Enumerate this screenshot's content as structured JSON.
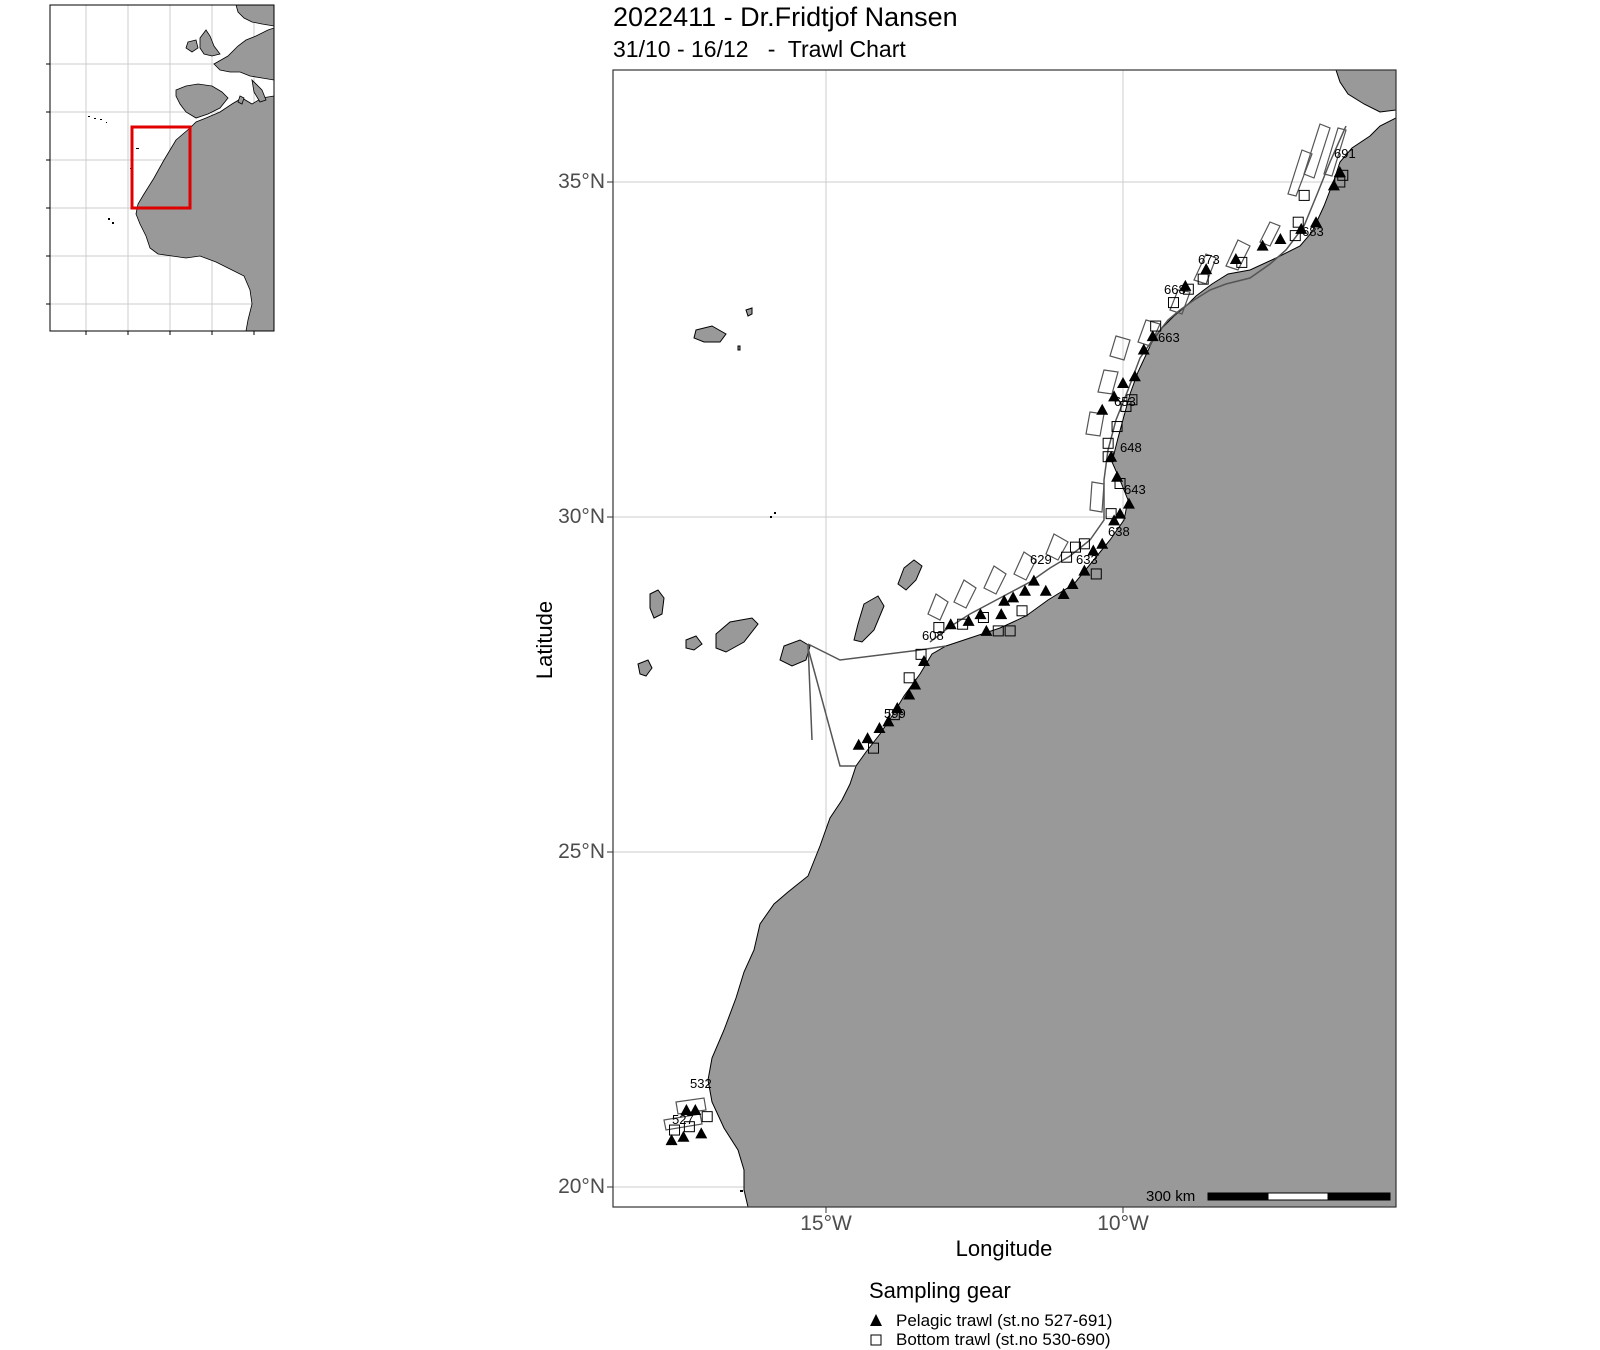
{
  "title": "2022411 - Dr.Fridtjof Nansen",
  "subtitle": "31/10 - 16/12   -  Trawl Chart",
  "axes": {
    "xlabel": "Longitude",
    "ylabel": "Latitude",
    "x_ticks": [
      "15°W",
      "10°W"
    ],
    "y_ticks": [
      "35°N",
      "30°N",
      "25°N",
      "20°N"
    ]
  },
  "scale_bar": {
    "label": "300 km"
  },
  "legend": {
    "title": "Sampling gear",
    "items": [
      {
        "label": "Pelagic trawl (st.no 527-691)",
        "symbol": "filled-triangle-icon"
      },
      {
        "label": "Bottom trawl (st.no 530-690)",
        "symbol": "open-square-icon"
      }
    ]
  },
  "colors": {
    "land": "#999999",
    "sea": "#ffffff",
    "grid": "#cccccc",
    "inset_box": "#e00000"
  },
  "station_labels": [
    "527",
    "532",
    "599",
    "608",
    "629",
    "633",
    "638",
    "643",
    "648",
    "653",
    "663",
    "668",
    "673",
    "683",
    "691"
  ],
  "chart_data": {
    "type": "map",
    "xlabel": "Longitude",
    "ylabel": "Latitude",
    "xlim": [
      -18.5,
      -5.0
    ],
    "ylim": [
      19.5,
      36.5
    ],
    "grid": true,
    "legend_position": "bottom",
    "series": [
      {
        "name": "Pelagic trawl (st.no 527-691)",
        "marker": "triangle",
        "points": [
          [
            -17.6,
            20.7
          ],
          [
            -17.4,
            20.75
          ],
          [
            -17.1,
            20.8
          ],
          [
            -17.35,
            21.15
          ],
          [
            -17.2,
            21.15
          ],
          [
            -14.45,
            26.6
          ],
          [
            -14.3,
            26.7
          ],
          [
            -14.1,
            26.85
          ],
          [
            -13.95,
            26.95
          ],
          [
            -13.8,
            27.15
          ],
          [
            -13.6,
            27.35
          ],
          [
            -13.5,
            27.5
          ],
          [
            -13.35,
            27.85
          ],
          [
            -12.9,
            28.4
          ],
          [
            -12.6,
            28.45
          ],
          [
            -12.4,
            28.55
          ],
          [
            -12.3,
            28.3
          ],
          [
            -12.05,
            28.55
          ],
          [
            -12.0,
            28.75
          ],
          [
            -11.85,
            28.8
          ],
          [
            -11.65,
            28.9
          ],
          [
            -11.5,
            29.05
          ],
          [
            -11.3,
            28.9
          ],
          [
            -11.0,
            28.85
          ],
          [
            -10.85,
            29.0
          ],
          [
            -10.65,
            29.2
          ],
          [
            -10.5,
            29.5
          ],
          [
            -10.35,
            29.6
          ],
          [
            -10.15,
            29.95
          ],
          [
            -10.05,
            30.05
          ],
          [
            -9.9,
            30.2
          ],
          [
            -10.1,
            30.6
          ],
          [
            -10.2,
            30.9
          ],
          [
            -10.35,
            31.6
          ],
          [
            -10.15,
            31.8
          ],
          [
            -10.0,
            32.0
          ],
          [
            -9.8,
            32.1
          ],
          [
            -9.65,
            32.5
          ],
          [
            -9.5,
            32.7
          ],
          [
            -8.95,
            33.45
          ],
          [
            -8.6,
            33.7
          ],
          [
            -8.1,
            33.85
          ],
          [
            -7.65,
            34.05
          ],
          [
            -7.35,
            34.15
          ],
          [
            -7.0,
            34.3
          ],
          [
            -6.75,
            34.4
          ],
          [
            -6.45,
            34.95
          ],
          [
            -6.35,
            35.15
          ]
        ]
      },
      {
        "name": "Bottom trawl (st.no 530-690)",
        "marker": "square",
        "points": [
          [
            -17.55,
            20.85
          ],
          [
            -17.3,
            20.9
          ],
          [
            -17.0,
            21.05
          ],
          [
            -14.2,
            26.55
          ],
          [
            -13.85,
            27.05
          ],
          [
            -13.6,
            27.6
          ],
          [
            -13.4,
            27.95
          ],
          [
            -13.1,
            28.35
          ],
          [
            -12.7,
            28.4
          ],
          [
            -12.35,
            28.5
          ],
          [
            -12.1,
            28.3
          ],
          [
            -11.9,
            28.3
          ],
          [
            -11.7,
            28.6
          ],
          [
            -10.95,
            29.4
          ],
          [
            -10.8,
            29.55
          ],
          [
            -10.65,
            29.6
          ],
          [
            -10.45,
            29.15
          ],
          [
            -10.2,
            30.05
          ],
          [
            -10.05,
            30.5
          ],
          [
            -10.25,
            30.9
          ],
          [
            -10.25,
            31.1
          ],
          [
            -10.1,
            31.35
          ],
          [
            -9.95,
            31.65
          ],
          [
            -9.85,
            31.75
          ],
          [
            -9.45,
            32.85
          ],
          [
            -9.15,
            33.2
          ],
          [
            -8.9,
            33.4
          ],
          [
            -8.65,
            33.55
          ],
          [
            -8.0,
            33.8
          ],
          [
            -7.1,
            34.2
          ],
          [
            -7.05,
            34.4
          ],
          [
            -6.95,
            34.8
          ],
          [
            -6.35,
            35.0
          ],
          [
            -6.3,
            35.1
          ]
        ]
      }
    ]
  }
}
